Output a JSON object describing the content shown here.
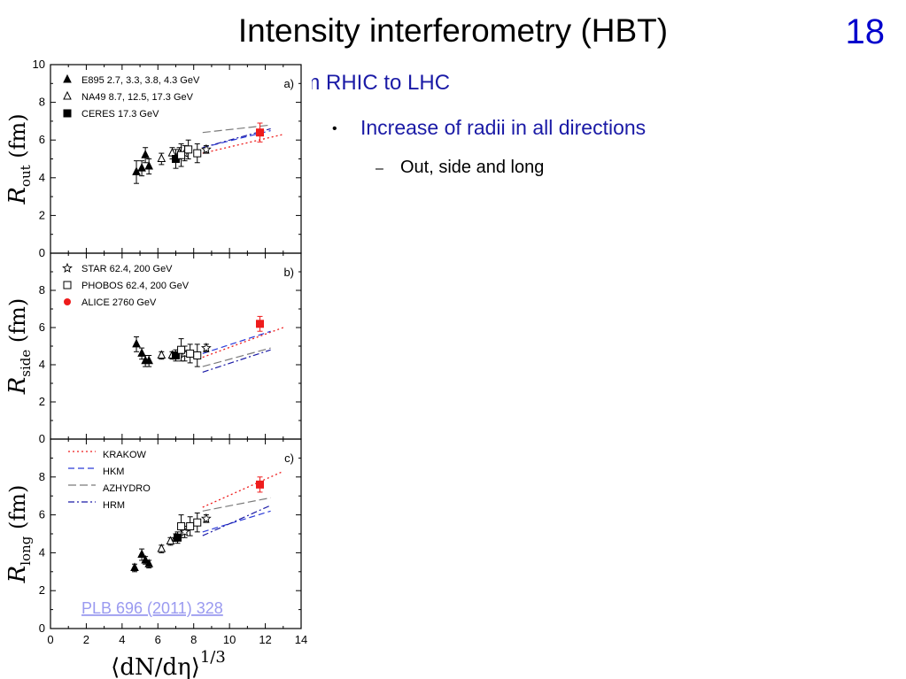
{
  "slide": {
    "title": "Intensity interferometry (HBT)",
    "number": "18",
    "subtitle": "rom RHIC to LHC",
    "bullet1": "Increase of radii in all directions",
    "bullet2": "Out, side and long",
    "bullet1_marker": "•",
    "bullet2_marker": "–"
  },
  "citation": "PLB 696 (2011) 328",
  "colors": {
    "red": "#ee1c1c",
    "blue": "#1a1aa6",
    "hkm": "#2a3ad8",
    "azhydro": "#7a7a7a"
  },
  "chart_data": [
    {
      "type": "scatter",
      "panel": "a)",
      "ylabel_main": "R",
      "ylabel_sub": "out",
      "ylabel_unit": "(fm)",
      "xlim": [
        0,
        14
      ],
      "ylim": [
        0,
        10
      ],
      "yticks": [
        "0",
        "2",
        "4",
        "6",
        "8",
        "10"
      ],
      "legend": [
        {
          "marker": "tri-filled",
          "label": "E895 2.7, 3.3, 3.8, 4.3 GeV"
        },
        {
          "marker": "tri-open",
          "label": "NA49 8.7, 12.5, 17.3 GeV"
        },
        {
          "marker": "sq-filled",
          "label": "CERES 17.3 GeV"
        }
      ],
      "series": [
        {
          "name": "E895",
          "marker": "tri-filled",
          "points": [
            [
              4.8,
              4.3,
              0.6
            ],
            [
              5.1,
              4.5,
              0.4
            ],
            [
              5.3,
              5.2,
              0.4
            ],
            [
              5.5,
              4.6,
              0.4
            ]
          ]
        },
        {
          "name": "NA49",
          "marker": "tri-open",
          "points": [
            [
              6.2,
              5.0,
              0.3
            ],
            [
              6.8,
              5.3,
              0.3
            ],
            [
              7.2,
              5.3,
              0.3
            ]
          ]
        },
        {
          "name": "CERES",
          "marker": "sq-filled",
          "points": [
            [
              7.0,
              5.0,
              0.5
            ]
          ]
        },
        {
          "name": "STAR",
          "marker": "star",
          "points": [
            [
              7.5,
              5.3,
              0.4
            ],
            [
              8.7,
              5.5,
              0.2
            ]
          ]
        },
        {
          "name": "PHOBOS",
          "marker": "sq-open",
          "points": [
            [
              7.3,
              5.2,
              0.6
            ],
            [
              7.7,
              5.5,
              0.5
            ],
            [
              8.2,
              5.3,
              0.5
            ]
          ]
        },
        {
          "name": "ALICE",
          "marker": "sq-red",
          "points": [
            [
              11.7,
              6.4,
              0.5
            ]
          ]
        }
      ],
      "curves": [
        {
          "name": "KRAKOW",
          "style": "dot-red",
          "points": [
            [
              8.5,
              5.3
            ],
            [
              13.0,
              6.3
            ]
          ]
        },
        {
          "name": "HKM",
          "style": "dash-blue",
          "points": [
            [
              8.5,
              5.6
            ],
            [
              12.3,
              6.5
            ]
          ]
        },
        {
          "name": "AZHYDRO",
          "style": "dash-gray",
          "points": [
            [
              8.5,
              6.4
            ],
            [
              12.3,
              6.8
            ]
          ]
        },
        {
          "name": "HRM",
          "style": "dashdot-blue",
          "points": [
            [
              8.5,
              5.6
            ],
            [
              12.3,
              6.6
            ]
          ]
        }
      ]
    },
    {
      "type": "scatter",
      "panel": "b)",
      "ylabel_main": "R",
      "ylabel_sub": "side",
      "ylabel_unit": "(fm)",
      "xlim": [
        0,
        14
      ],
      "ylim": [
        0,
        10
      ],
      "yticks": [
        "0",
        "2",
        "4",
        "6",
        "8"
      ],
      "legend": [
        {
          "marker": "star",
          "label": "STAR 62.4, 200 GeV"
        },
        {
          "marker": "sq-open",
          "label": "PHOBOS 62.4, 200 GeV"
        },
        {
          "marker": "dot-red",
          "label": "ALICE 2760 GeV"
        }
      ],
      "series": [
        {
          "name": "E895",
          "marker": "tri-filled",
          "points": [
            [
              4.8,
              5.1,
              0.4
            ],
            [
              5.1,
              4.6,
              0.3
            ],
            [
              5.3,
              4.2,
              0.3
            ],
            [
              5.5,
              4.2,
              0.3
            ]
          ]
        },
        {
          "name": "NA49",
          "marker": "tri-open",
          "points": [
            [
              6.2,
              4.5,
              0.2
            ],
            [
              6.8,
              4.5,
              0.2
            ]
          ]
        },
        {
          "name": "CERES",
          "marker": "sq-filled",
          "points": [
            [
              7.0,
              4.5,
              0.3
            ]
          ]
        },
        {
          "name": "STAR",
          "marker": "star",
          "points": [
            [
              7.5,
              4.6,
              0.4
            ],
            [
              8.7,
              4.9,
              0.2
            ]
          ]
        },
        {
          "name": "PHOBOS",
          "marker": "sq-open",
          "points": [
            [
              7.3,
              4.8,
              0.6
            ],
            [
              7.8,
              4.6,
              0.5
            ],
            [
              8.2,
              4.5,
              0.6
            ]
          ]
        },
        {
          "name": "ALICE",
          "marker": "sq-red",
          "points": [
            [
              11.7,
              6.2,
              0.4
            ]
          ]
        }
      ],
      "curves": [
        {
          "name": "KRAKOW",
          "style": "dot-red",
          "points": [
            [
              8.5,
              4.4
            ],
            [
              13.0,
              6.0
            ]
          ]
        },
        {
          "name": "HKM",
          "style": "dash-blue",
          "points": [
            [
              8.5,
              4.6
            ],
            [
              12.3,
              5.8
            ]
          ]
        },
        {
          "name": "AZHYDRO",
          "style": "dash-gray",
          "points": [
            [
              8.5,
              3.9
            ],
            [
              12.3,
              4.9
            ]
          ]
        },
        {
          "name": "HRM",
          "style": "dashdot-blue",
          "points": [
            [
              8.5,
              3.6
            ],
            [
              12.3,
              4.8
            ]
          ]
        }
      ]
    },
    {
      "type": "scatter",
      "panel": "c)",
      "ylabel_main": "R",
      "ylabel_sub": "long",
      "ylabel_unit": "(fm)",
      "xlabel": "⟨dN/dη⟩",
      "xlabel_exp": "1/3",
      "xlim": [
        0,
        14
      ],
      "ylim": [
        0,
        10
      ],
      "xticks": [
        "0",
        "2",
        "4",
        "6",
        "8",
        "10",
        "12",
        "14"
      ],
      "yticks": [
        "0",
        "2",
        "4",
        "6",
        "8"
      ],
      "legend": [
        {
          "style": "dot-red",
          "label": "KRAKOW"
        },
        {
          "style": "dash-blue",
          "label": "HKM"
        },
        {
          "style": "dash-gray",
          "label": "AZHYDRO"
        },
        {
          "style": "dashdot-blue",
          "label": "HRM"
        }
      ],
      "series": [
        {
          "name": "E895",
          "marker": "tri-filled",
          "points": [
            [
              4.7,
              3.2,
              0.2
            ],
            [
              5.1,
              3.9,
              0.3
            ],
            [
              5.3,
              3.6,
              0.2
            ],
            [
              5.5,
              3.4,
              0.2
            ]
          ]
        },
        {
          "name": "NA49",
          "marker": "tri-open",
          "points": [
            [
              6.2,
              4.2,
              0.2
            ],
            [
              6.7,
              4.6,
              0.2
            ],
            [
              7.0,
              4.8,
              0.2
            ]
          ]
        },
        {
          "name": "CERES",
          "marker": "sq-filled",
          "points": [
            [
              7.1,
              4.8,
              0.3
            ]
          ]
        },
        {
          "name": "STAR",
          "marker": "star",
          "points": [
            [
              7.5,
              5.1,
              0.3
            ],
            [
              8.7,
              5.8,
              0.2
            ]
          ]
        },
        {
          "name": "PHOBOS",
          "marker": "sq-open",
          "points": [
            [
              7.3,
              5.4,
              0.6
            ],
            [
              7.8,
              5.4,
              0.5
            ],
            [
              8.2,
              5.6,
              0.5
            ]
          ]
        },
        {
          "name": "ALICE",
          "marker": "sq-red",
          "points": [
            [
              11.7,
              7.6,
              0.4
            ]
          ]
        }
      ],
      "curves": [
        {
          "name": "KRAKOW",
          "style": "dot-red",
          "points": [
            [
              8.5,
              6.4
            ],
            [
              13.0,
              8.3
            ]
          ]
        },
        {
          "name": "HKM",
          "style": "dash-blue",
          "points": [
            [
              8.5,
              5.1
            ],
            [
              12.3,
              6.2
            ]
          ]
        },
        {
          "name": "AZHYDRO",
          "style": "dash-gray",
          "points": [
            [
              8.5,
              6.2
            ],
            [
              12.3,
              6.9
            ]
          ]
        },
        {
          "name": "HRM",
          "style": "dashdot-blue",
          "points": [
            [
              8.5,
              4.9
            ],
            [
              12.3,
              6.5
            ]
          ]
        }
      ]
    }
  ]
}
